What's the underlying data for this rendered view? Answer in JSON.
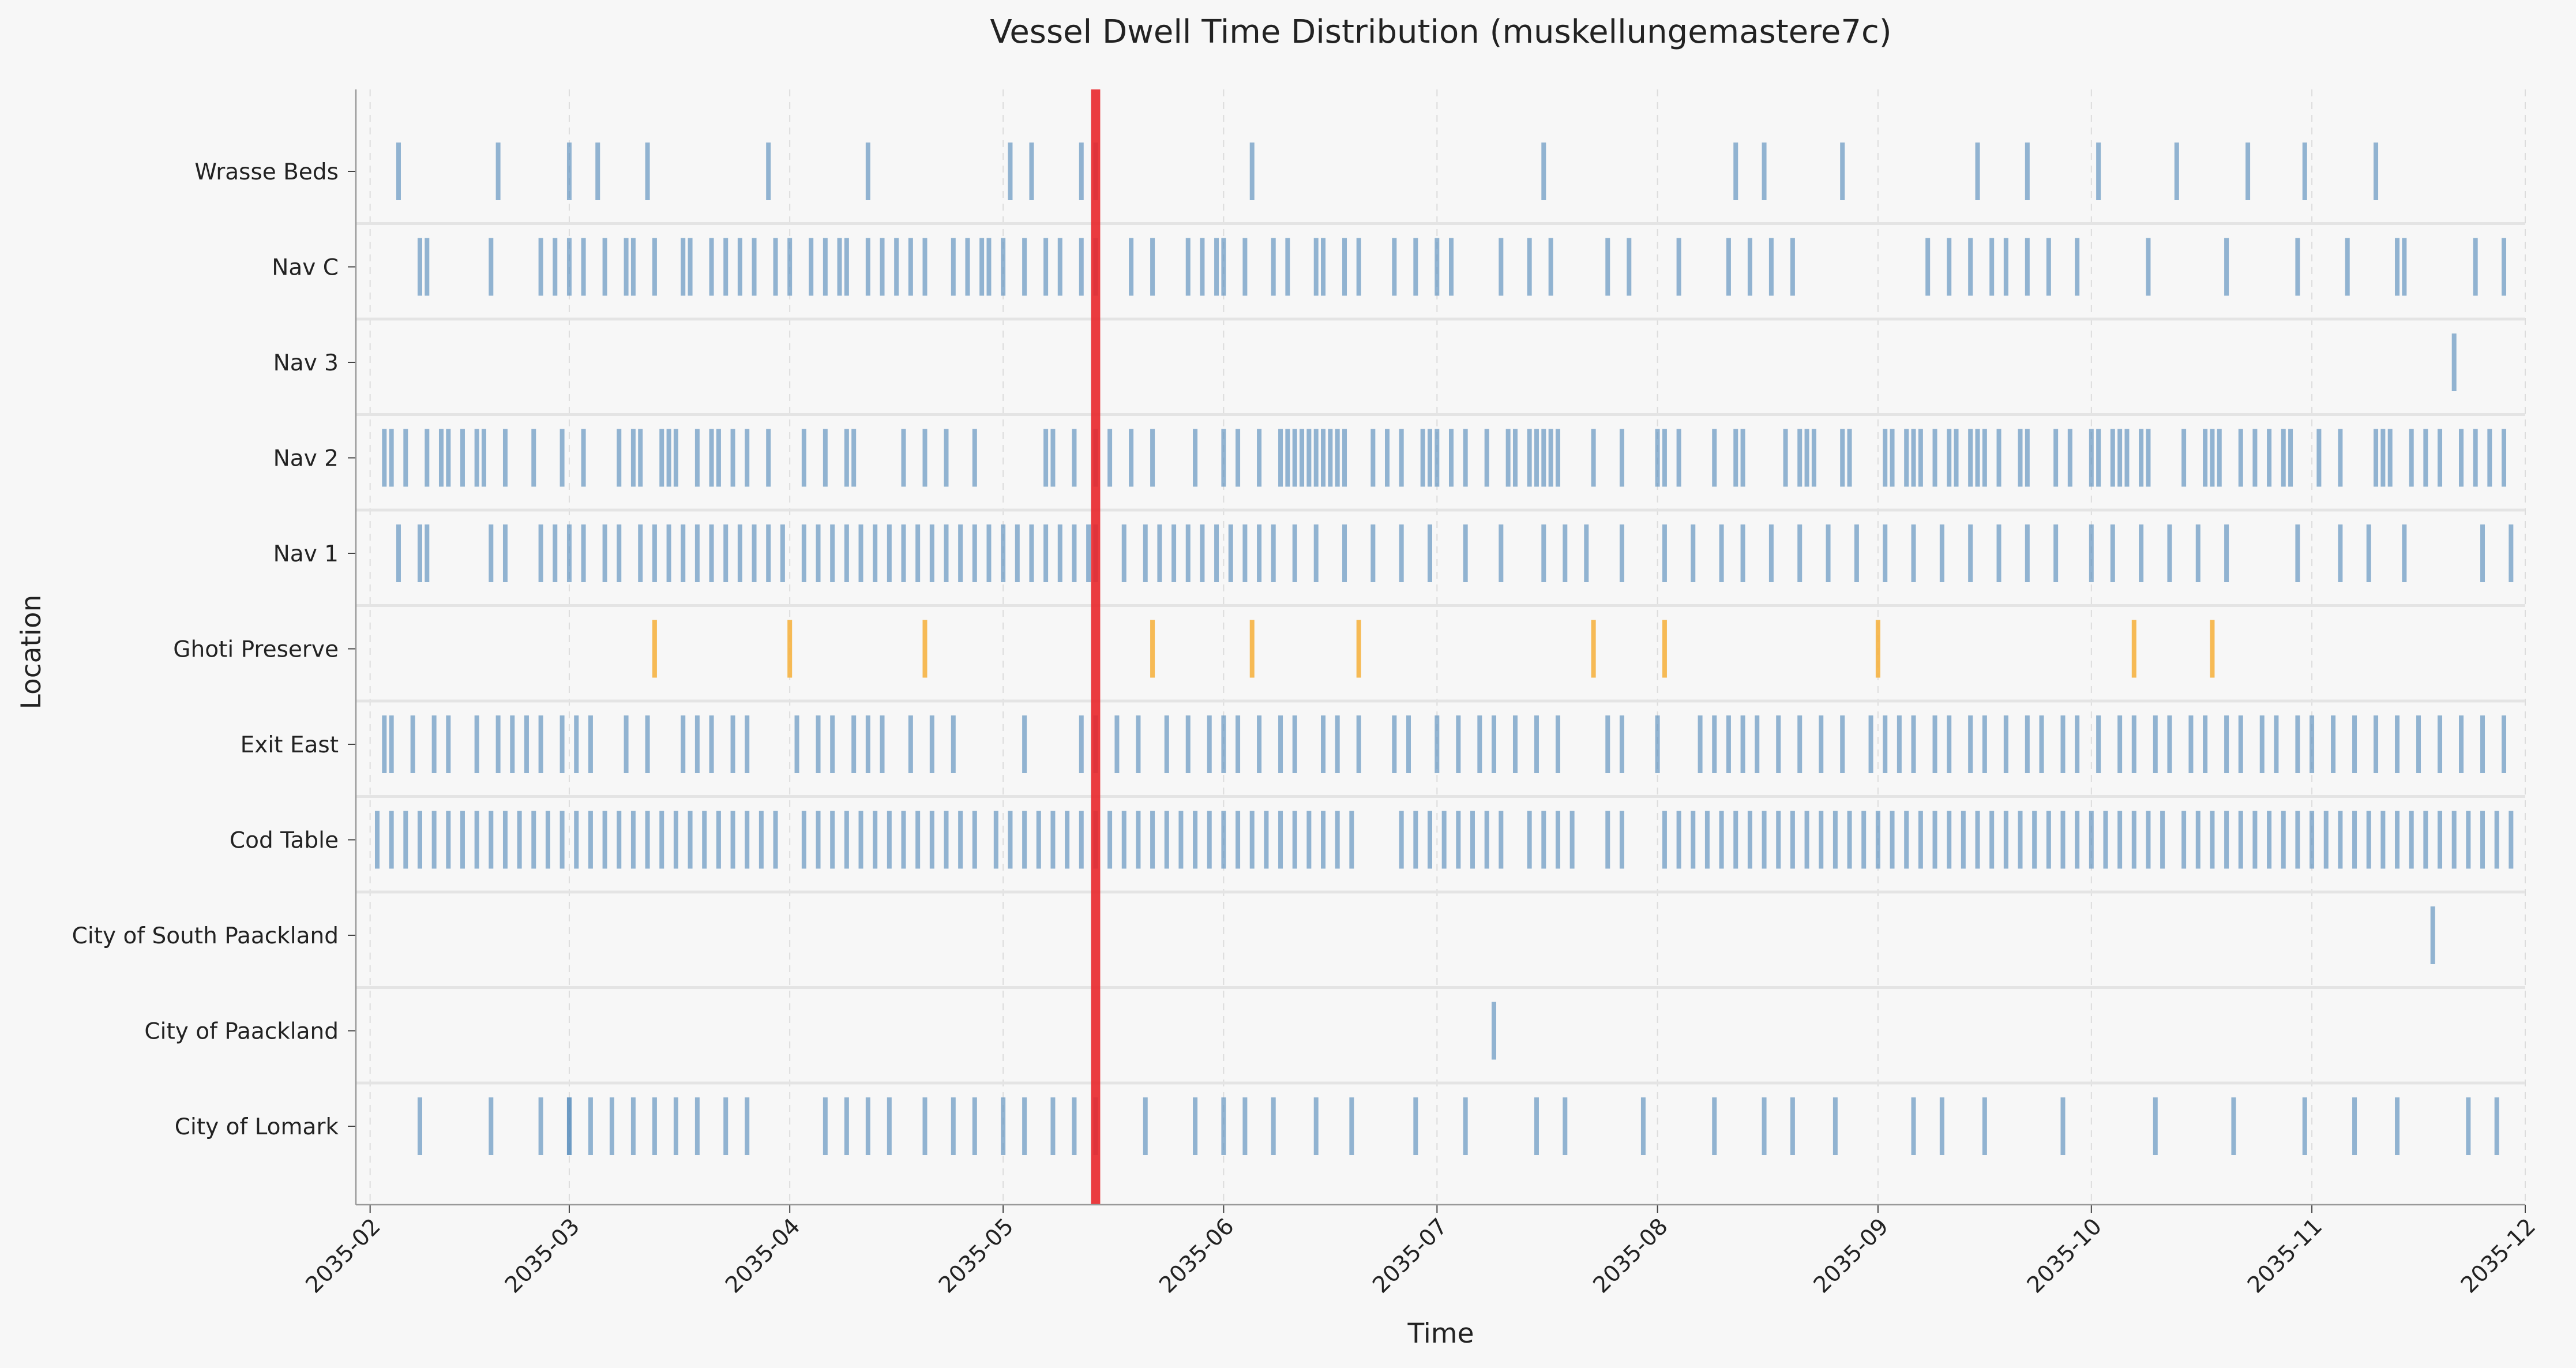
{
  "chart_data": {
    "type": "timeline",
    "title": "Vessel Dwell Time Distribution (muskellungemastere7c)",
    "xlabel": "Time",
    "ylabel": "Location",
    "x_ticks": [
      "2035-02",
      "2035-03",
      "2035-04",
      "2035-05",
      "2035-06",
      "2035-07",
      "2035-08",
      "2035-09",
      "2035-10",
      "2035-11",
      "2035-12"
    ],
    "xlim": [
      "2035-01-30",
      "2035-12-01"
    ],
    "grid": true,
    "marker": {
      "date": "2035-05-14",
      "color": "#e8262a"
    },
    "colors": {
      "default": "#5b8fbd",
      "highlight": "#f5b342",
      "background": "#f7f7f7"
    },
    "locations": [
      {
        "name": "Wrasse Beds",
        "color": "#5b8fbd",
        "events": [
          "2035-02-05",
          "2035-02-19",
          "2035-02-29",
          "2035-03-05",
          "2035-03-12",
          "2035-03-29",
          "2035-04-12",
          "2035-05-02",
          "2035-05-05",
          "2035-05-12",
          "2035-05-14",
          "2035-06-05",
          "2035-07-16",
          "2035-08-12",
          "2035-08-16",
          "2035-08-27",
          "2035-09-15",
          "2035-09-22",
          "2035-10-02",
          "2035-10-13",
          "2035-10-23",
          "2035-10-31",
          "2035-11-10"
        ]
      },
      {
        "name": "Nav C",
        "color": "#5b8fbd",
        "events": [
          "2035-02-08",
          "2035-02-09",
          "2035-02-18",
          "2035-02-25",
          "2035-02-27",
          "2035-03-01",
          "2035-03-03",
          "2035-03-06",
          "2035-03-09",
          "2035-03-10",
          "2035-03-13",
          "2035-03-17",
          "2035-03-18",
          "2035-03-21",
          "2035-03-23",
          "2035-03-25",
          "2035-03-27",
          "2035-03-30",
          "2035-04-01",
          "2035-04-04",
          "2035-04-06",
          "2035-04-08",
          "2035-04-09",
          "2035-04-12",
          "2035-04-14",
          "2035-04-16",
          "2035-04-18",
          "2035-04-20",
          "2035-04-24",
          "2035-04-26",
          "2035-04-28",
          "2035-04-29",
          "2035-05-01",
          "2035-05-04",
          "2035-05-07",
          "2035-05-09",
          "2035-05-12",
          "2035-05-14",
          "2035-05-19",
          "2035-05-22",
          "2035-05-27",
          "2035-05-29",
          "2035-05-31",
          "2035-06-01",
          "2035-06-04",
          "2035-06-08",
          "2035-06-10",
          "2035-06-14",
          "2035-06-15",
          "2035-06-18",
          "2035-06-20",
          "2035-06-25",
          "2035-06-28",
          "2035-07-01",
          "2035-07-03",
          "2035-07-10",
          "2035-07-14",
          "2035-07-17",
          "2035-07-25",
          "2035-07-28",
          "2035-08-04",
          "2035-08-11",
          "2035-08-14",
          "2035-08-17",
          "2035-08-20",
          "2035-09-08",
          "2035-09-11",
          "2035-09-14",
          "2035-09-17",
          "2035-09-19",
          "2035-09-22",
          "2035-09-25",
          "2035-09-29",
          "2035-10-09",
          "2035-10-20",
          "2035-10-30",
          "2035-11-06",
          "2035-11-13",
          "2035-11-14",
          "2035-11-24",
          "2035-11-28"
        ]
      },
      {
        "name": "Nav 3",
        "color": "#5b8fbd",
        "events": [
          "2035-11-21"
        ]
      },
      {
        "name": "Nav 2",
        "color": "#5b8fbd",
        "events": [
          "2035-02-03",
          "2035-02-04",
          "2035-02-06",
          "2035-02-09",
          "2035-02-11",
          "2035-02-12",
          "2035-02-14",
          "2035-02-16",
          "2035-02-17",
          "2035-02-20",
          "2035-02-24",
          "2035-02-28",
          "2035-03-03",
          "2035-03-08",
          "2035-03-10",
          "2035-03-11",
          "2035-03-14",
          "2035-03-15",
          "2035-03-16",
          "2035-03-19",
          "2035-03-21",
          "2035-03-22",
          "2035-03-24",
          "2035-03-26",
          "2035-03-29",
          "2035-04-03",
          "2035-04-06",
          "2035-04-09",
          "2035-04-10",
          "2035-04-17",
          "2035-04-20",
          "2035-04-23",
          "2035-04-27",
          "2035-05-07",
          "2035-05-08",
          "2035-05-11",
          "2035-05-14",
          "2035-05-16",
          "2035-05-19",
          "2035-05-22",
          "2035-05-28",
          "2035-06-01",
          "2035-06-03",
          "2035-06-06",
          "2035-06-09",
          "2035-06-10",
          "2035-06-11",
          "2035-06-12",
          "2035-06-13",
          "2035-06-14",
          "2035-06-15",
          "2035-06-16",
          "2035-06-17",
          "2035-06-18",
          "2035-06-22",
          "2035-06-24",
          "2035-06-26",
          "2035-06-29",
          "2035-06-30",
          "2035-07-01",
          "2035-07-03",
          "2035-07-05",
          "2035-07-08",
          "2035-07-11",
          "2035-07-12",
          "2035-07-14",
          "2035-07-15",
          "2035-07-16",
          "2035-07-17",
          "2035-07-18",
          "2035-07-23",
          "2035-07-27",
          "2035-08-01",
          "2035-08-02",
          "2035-08-04",
          "2035-08-09",
          "2035-08-12",
          "2035-08-13",
          "2035-08-19",
          "2035-08-21",
          "2035-08-22",
          "2035-08-23",
          "2035-08-27",
          "2035-08-28",
          "2035-09-02",
          "2035-09-03",
          "2035-09-05",
          "2035-09-06",
          "2035-09-07",
          "2035-09-09",
          "2035-09-11",
          "2035-09-12",
          "2035-09-14",
          "2035-09-15",
          "2035-09-16",
          "2035-09-18",
          "2035-09-21",
          "2035-09-22",
          "2035-09-26",
          "2035-09-28",
          "2035-10-01",
          "2035-10-02",
          "2035-10-04",
          "2035-10-05",
          "2035-10-06",
          "2035-10-08",
          "2035-10-09",
          "2035-10-14",
          "2035-10-17",
          "2035-10-18",
          "2035-10-19",
          "2035-10-22",
          "2035-10-24",
          "2035-10-26",
          "2035-10-28",
          "2035-10-29",
          "2035-11-02",
          "2035-11-05",
          "2035-11-10",
          "2035-11-11",
          "2035-11-12",
          "2035-11-15",
          "2035-11-17",
          "2035-11-19",
          "2035-11-22",
          "2035-11-24",
          "2035-11-26",
          "2035-11-28"
        ]
      },
      {
        "name": "Nav 1",
        "color": "#5b8fbd",
        "events": [
          "2035-02-05",
          "2035-02-08",
          "2035-02-09",
          "2035-02-18",
          "2035-02-20",
          "2035-02-25",
          "2035-02-27",
          "2035-03-01",
          "2035-03-03",
          "2035-03-06",
          "2035-03-08",
          "2035-03-11",
          "2035-03-13",
          "2035-03-15",
          "2035-03-17",
          "2035-03-19",
          "2035-03-21",
          "2035-03-23",
          "2035-03-25",
          "2035-03-27",
          "2035-03-29",
          "2035-03-31",
          "2035-04-03",
          "2035-04-05",
          "2035-04-07",
          "2035-04-09",
          "2035-04-11",
          "2035-04-13",
          "2035-04-15",
          "2035-04-17",
          "2035-04-19",
          "2035-04-21",
          "2035-04-23",
          "2035-04-25",
          "2035-04-27",
          "2035-04-29",
          "2035-05-01",
          "2035-05-03",
          "2035-05-05",
          "2035-05-07",
          "2035-05-09",
          "2035-05-11",
          "2035-05-13",
          "2035-05-14",
          "2035-05-18",
          "2035-05-21",
          "2035-05-23",
          "2035-05-25",
          "2035-05-27",
          "2035-05-29",
          "2035-05-31",
          "2035-06-02",
          "2035-06-04",
          "2035-06-06",
          "2035-06-08",
          "2035-06-11",
          "2035-06-14",
          "2035-06-18",
          "2035-06-22",
          "2035-06-26",
          "2035-06-30",
          "2035-07-05",
          "2035-07-10",
          "2035-07-16",
          "2035-07-19",
          "2035-07-22",
          "2035-07-27",
          "2035-08-02",
          "2035-08-06",
          "2035-08-10",
          "2035-08-13",
          "2035-08-17",
          "2035-08-21",
          "2035-08-25",
          "2035-08-29",
          "2035-09-02",
          "2035-09-06",
          "2035-09-10",
          "2035-09-14",
          "2035-09-18",
          "2035-09-22",
          "2035-09-26",
          "2035-10-01",
          "2035-10-04",
          "2035-10-08",
          "2035-10-12",
          "2035-10-16",
          "2035-10-20",
          "2035-10-30",
          "2035-11-05",
          "2035-11-09",
          "2035-11-14",
          "2035-11-25",
          "2035-11-29"
        ]
      },
      {
        "name": "Ghoti Preserve",
        "color": "#f5b342",
        "events": [
          "2035-03-13",
          "2035-04-01",
          "2035-04-20",
          "2035-05-22",
          "2035-06-05",
          "2035-06-20",
          "2035-07-23",
          "2035-08-02",
          "2035-09-01",
          "2035-10-07",
          "2035-10-18"
        ]
      },
      {
        "name": "Exit East",
        "color": "#5b8fbd",
        "events": [
          "2035-02-03",
          "2035-02-04",
          "2035-02-07",
          "2035-02-10",
          "2035-02-12",
          "2035-02-16",
          "2035-02-19",
          "2035-02-21",
          "2035-02-23",
          "2035-02-25",
          "2035-02-28",
          "2035-03-02",
          "2035-03-04",
          "2035-03-09",
          "2035-03-12",
          "2035-03-17",
          "2035-03-19",
          "2035-03-21",
          "2035-03-24",
          "2035-03-26",
          "2035-04-02",
          "2035-04-05",
          "2035-04-07",
          "2035-04-10",
          "2035-04-12",
          "2035-04-14",
          "2035-04-18",
          "2035-04-21",
          "2035-04-24",
          "2035-05-04",
          "2035-05-12",
          "2035-05-14",
          "2035-05-17",
          "2035-05-20",
          "2035-05-24",
          "2035-05-27",
          "2035-05-30",
          "2035-06-01",
          "2035-06-03",
          "2035-06-06",
          "2035-06-09",
          "2035-06-11",
          "2035-06-15",
          "2035-06-17",
          "2035-06-20",
          "2035-06-25",
          "2035-06-27",
          "2035-07-01",
          "2035-07-04",
          "2035-07-07",
          "2035-07-09",
          "2035-07-12",
          "2035-07-15",
          "2035-07-18",
          "2035-07-25",
          "2035-07-27",
          "2035-08-01",
          "2035-08-07",
          "2035-08-09",
          "2035-08-11",
          "2035-08-13",
          "2035-08-15",
          "2035-08-18",
          "2035-08-21",
          "2035-08-24",
          "2035-08-27",
          "2035-08-31",
          "2035-09-02",
          "2035-09-04",
          "2035-09-06",
          "2035-09-09",
          "2035-09-11",
          "2035-09-14",
          "2035-09-16",
          "2035-09-19",
          "2035-09-22",
          "2035-09-24",
          "2035-09-27",
          "2035-09-29",
          "2035-10-02",
          "2035-10-05",
          "2035-10-07",
          "2035-10-10",
          "2035-10-12",
          "2035-10-15",
          "2035-10-17",
          "2035-10-20",
          "2035-10-22",
          "2035-10-25",
          "2035-10-27",
          "2035-10-30",
          "2035-11-01",
          "2035-11-04",
          "2035-11-07",
          "2035-11-10",
          "2035-11-13",
          "2035-11-16",
          "2035-11-19",
          "2035-11-22",
          "2035-11-25",
          "2035-11-28"
        ]
      },
      {
        "name": "Cod Table",
        "color": "#5b8fbd",
        "events": [
          "2035-02-02",
          "2035-02-04",
          "2035-02-06",
          "2035-02-08",
          "2035-02-10",
          "2035-02-12",
          "2035-02-14",
          "2035-02-16",
          "2035-02-18",
          "2035-02-20",
          "2035-02-22",
          "2035-02-24",
          "2035-02-26",
          "2035-02-28",
          "2035-03-02",
          "2035-03-04",
          "2035-03-06",
          "2035-03-08",
          "2035-03-10",
          "2035-03-12",
          "2035-03-14",
          "2035-03-16",
          "2035-03-18",
          "2035-03-20",
          "2035-03-22",
          "2035-03-24",
          "2035-03-26",
          "2035-03-28",
          "2035-03-30",
          "2035-04-03",
          "2035-04-05",
          "2035-04-07",
          "2035-04-09",
          "2035-04-11",
          "2035-04-13",
          "2035-04-15",
          "2035-04-17",
          "2035-04-19",
          "2035-04-21",
          "2035-04-23",
          "2035-04-25",
          "2035-04-27",
          "2035-04-30",
          "2035-05-02",
          "2035-05-04",
          "2035-05-06",
          "2035-05-08",
          "2035-05-10",
          "2035-05-12",
          "2035-05-14",
          "2035-05-16",
          "2035-05-18",
          "2035-05-20",
          "2035-05-22",
          "2035-05-24",
          "2035-05-26",
          "2035-05-28",
          "2035-05-30",
          "2035-06-01",
          "2035-06-03",
          "2035-06-05",
          "2035-06-07",
          "2035-06-09",
          "2035-06-11",
          "2035-06-13",
          "2035-06-15",
          "2035-06-17",
          "2035-06-19",
          "2035-06-26",
          "2035-06-28",
          "2035-06-30",
          "2035-07-02",
          "2035-07-04",
          "2035-07-06",
          "2035-07-08",
          "2035-07-10",
          "2035-07-14",
          "2035-07-16",
          "2035-07-18",
          "2035-07-20",
          "2035-07-25",
          "2035-07-27",
          "2035-08-02",
          "2035-08-04",
          "2035-08-06",
          "2035-08-08",
          "2035-08-10",
          "2035-08-12",
          "2035-08-14",
          "2035-08-16",
          "2035-08-18",
          "2035-08-20",
          "2035-08-22",
          "2035-08-24",
          "2035-08-26",
          "2035-08-28",
          "2035-08-30",
          "2035-09-01",
          "2035-09-03",
          "2035-09-05",
          "2035-09-07",
          "2035-09-09",
          "2035-09-11",
          "2035-09-13",
          "2035-09-15",
          "2035-09-17",
          "2035-09-19",
          "2035-09-21",
          "2035-09-23",
          "2035-09-25",
          "2035-09-27",
          "2035-09-29",
          "2035-10-01",
          "2035-10-03",
          "2035-10-05",
          "2035-10-07",
          "2035-10-09",
          "2035-10-11",
          "2035-10-14",
          "2035-10-16",
          "2035-10-18",
          "2035-10-20",
          "2035-10-22",
          "2035-10-24",
          "2035-10-26",
          "2035-10-28",
          "2035-10-30",
          "2035-11-01",
          "2035-11-03",
          "2035-11-05",
          "2035-11-07",
          "2035-11-09",
          "2035-11-11",
          "2035-11-13",
          "2035-11-15",
          "2035-11-17",
          "2035-11-19",
          "2035-11-21",
          "2035-11-23",
          "2035-11-25",
          "2035-11-27",
          "2035-11-29"
        ]
      },
      {
        "name": "City of South Paackland",
        "color": "#5b8fbd",
        "events": [
          "2035-11-18"
        ]
      },
      {
        "name": "City of Paackland",
        "color": "#5b8fbd",
        "events": [
          "2035-07-09"
        ]
      },
      {
        "name": "City of Lomark",
        "color": "#5b8fbd",
        "events": [
          "2035-02-08",
          "2035-02-18",
          "2035-02-25",
          "2035-02-29",
          "2035-03-01",
          "2035-03-04",
          "2035-03-07",
          "2035-03-10",
          "2035-03-13",
          "2035-03-16",
          "2035-03-19",
          "2035-03-23",
          "2035-03-26",
          "2035-04-06",
          "2035-04-09",
          "2035-04-12",
          "2035-04-15",
          "2035-04-20",
          "2035-04-24",
          "2035-04-27",
          "2035-05-01",
          "2035-05-04",
          "2035-05-08",
          "2035-05-11",
          "2035-05-14",
          "2035-05-21",
          "2035-05-28",
          "2035-06-01",
          "2035-06-04",
          "2035-06-08",
          "2035-06-14",
          "2035-06-19",
          "2035-06-28",
          "2035-07-05",
          "2035-07-15",
          "2035-07-19",
          "2035-07-30",
          "2035-08-09",
          "2035-08-16",
          "2035-08-20",
          "2035-08-26",
          "2035-09-06",
          "2035-09-10",
          "2035-09-16",
          "2035-09-27",
          "2035-10-10",
          "2035-10-21",
          "2035-10-31",
          "2035-11-07",
          "2035-11-13",
          "2035-11-23",
          "2035-11-27"
        ]
      }
    ]
  }
}
